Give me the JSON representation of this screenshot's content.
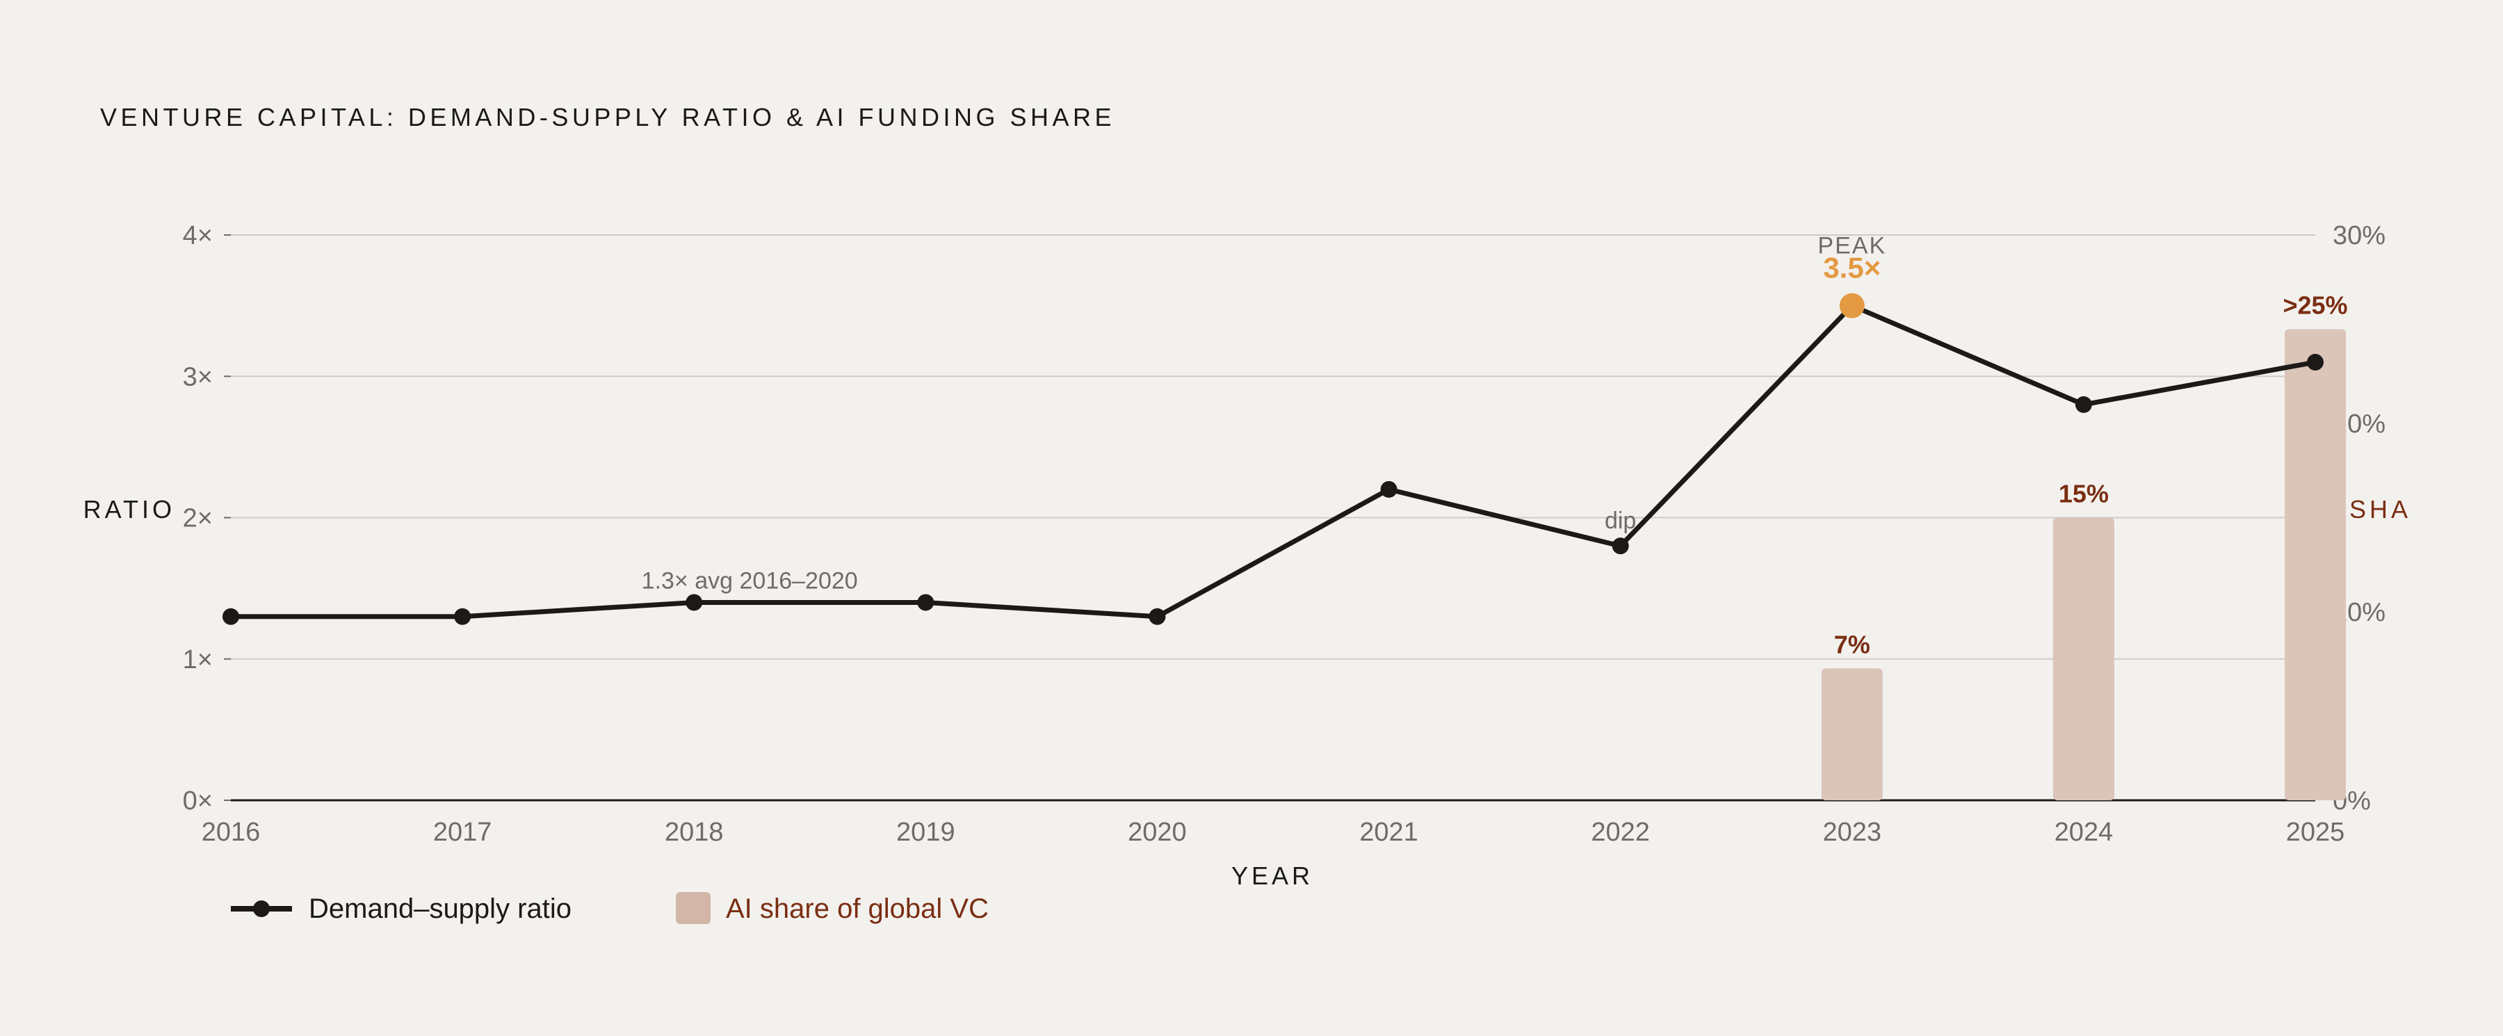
{
  "chart_data": {
    "type": "line+bar",
    "title": "VENTURE CAPITAL: DEMAND-SUPPLY RATIO & AI FUNDING SHARE",
    "xlabel": "YEAR",
    "ylabel_left": "RATIO",
    "ylabel_right": "AI SHA",
    "categories": [
      "2016",
      "2017",
      "2018",
      "2019",
      "2020",
      "2021",
      "2022",
      "2023",
      "2024",
      "2025"
    ],
    "left_axis": {
      "ylim": [
        0,
        4
      ],
      "ticks": [
        0,
        1,
        2,
        3,
        4
      ],
      "tick_labels": [
        "0×",
        "1×",
        "2×",
        "3×",
        "4×"
      ]
    },
    "right_axis": {
      "ylim": [
        0,
        30
      ],
      "ticks": [
        0,
        10,
        20,
        30
      ],
      "tick_labels": [
        "0%",
        "10%",
        "20%",
        "30%"
      ]
    },
    "series": [
      {
        "name": "Demand–supply ratio",
        "type": "line",
        "axis": "left",
        "values": [
          1.3,
          1.3,
          1.4,
          1.4,
          1.3,
          2.2,
          1.8,
          3.5,
          2.8,
          3.1
        ],
        "color": "#1c1a17"
      },
      {
        "name": "AI share of global VC",
        "type": "bar",
        "axis": "right",
        "x": [
          "2023",
          "2024",
          "2025"
        ],
        "values": [
          7,
          15,
          25
        ],
        "labels": [
          "7%",
          "15%",
          ">25%"
        ],
        "color": "#dbc4b8",
        "label_color": "#7a2e12"
      }
    ],
    "annotations": [
      {
        "text": "1.3× avg 2016–2020",
        "x": "2018",
        "y": 1.4
      },
      {
        "text": "dip",
        "x": "2022",
        "y": 1.8
      },
      {
        "text": "PEAK",
        "x": "2023",
        "y": 3.5
      },
      {
        "text": "3.5×",
        "x": "2023",
        "y": 3.5,
        "color": "#e39a43"
      }
    ],
    "grid": true,
    "legend_position": "bottom-left",
    "colors": {
      "background": "#f3f1ee",
      "line": "#1c1a17",
      "peak": "#e39a43",
      "bar": "#dbc4b8",
      "accent": "#7a2e12",
      "grid": "#cfccc8",
      "tick": "#6e6b68"
    }
  }
}
